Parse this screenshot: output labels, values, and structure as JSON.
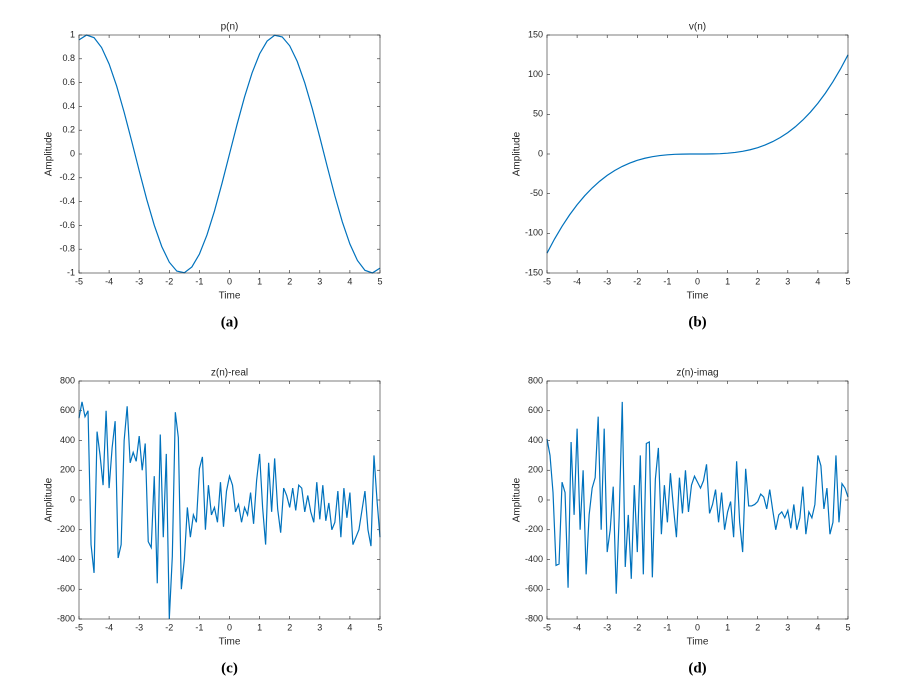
{
  "chart_data": [
    {
      "type": "line",
      "title": "p(n)",
      "caption": "(a)",
      "xlabel": "Time",
      "ylabel": "Amplitude",
      "color": "#0072bd",
      "x": [
        -5,
        -4.75,
        -4.5,
        -4.25,
        -4,
        -3.75,
        -3.5,
        -3.25,
        -3,
        -2.75,
        -2.5,
        -2.25,
        -2,
        -1.75,
        -1.5,
        -1.25,
        -1,
        -0.75,
        -0.5,
        -0.25,
        0,
        0.25,
        0.5,
        0.75,
        1,
        1.25,
        1.5,
        1.75,
        2,
        2.25,
        2.5,
        2.75,
        3,
        3.25,
        3.5,
        3.75,
        4,
        4.25,
        4.5,
        4.75,
        5
      ],
      "values": [
        0.9589,
        0.9993,
        0.9775,
        0.895,
        0.7568,
        0.5716,
        0.3508,
        0.1082,
        -0.1411,
        -0.3817,
        -0.5985,
        -0.7781,
        -0.9093,
        -0.984,
        -0.9975,
        -0.949,
        -0.8415,
        -0.6816,
        -0.4794,
        -0.2474,
        0,
        0.2474,
        0.4794,
        0.6816,
        0.8415,
        0.949,
        0.9975,
        0.984,
        0.9093,
        0.7781,
        0.5985,
        0.3817,
        0.1411,
        -0.1082,
        -0.3508,
        -0.5716,
        -0.7568,
        -0.895,
        -0.9775,
        -0.9993,
        -0.9589
      ],
      "xlim": [
        -5,
        5
      ],
      "ylim": [
        -1,
        1
      ],
      "xticks": [
        -5,
        -4,
        -3,
        -2,
        -1,
        0,
        1,
        2,
        3,
        4,
        5
      ],
      "yticks": [
        -1,
        -0.8,
        -0.6,
        -0.4,
        -0.2,
        0,
        0.2,
        0.4,
        0.6,
        0.8,
        1
      ]
    },
    {
      "type": "line",
      "title": "v(n)",
      "caption": "(b)",
      "xlabel": "Time",
      "ylabel": "Amplitude",
      "color": "#0072bd",
      "x": [
        -5,
        -4.75,
        -4.5,
        -4.25,
        -4,
        -3.75,
        -3.5,
        -3.25,
        -3,
        -2.75,
        -2.5,
        -2.25,
        -2,
        -1.75,
        -1.5,
        -1.25,
        -1,
        -0.75,
        -0.5,
        -0.25,
        0,
        0.25,
        0.5,
        0.75,
        1,
        1.25,
        1.5,
        1.75,
        2,
        2.25,
        2.5,
        2.75,
        3,
        3.25,
        3.5,
        3.75,
        4,
        4.25,
        4.5,
        4.75,
        5
      ],
      "values": [
        -125,
        -107.17,
        -91.13,
        -76.77,
        -64,
        -52.73,
        -42.88,
        -34.33,
        -27,
        -20.8,
        -15.63,
        -11.39,
        -8,
        -5.36,
        -3.38,
        -1.95,
        -1,
        -0.42,
        -0.13,
        -0.02,
        0,
        0.02,
        0.13,
        0.42,
        1,
        1.95,
        3.38,
        5.36,
        8,
        11.39,
        15.63,
        20.8,
        27,
        34.33,
        42.88,
        52.73,
        64,
        76.77,
        91.13,
        107.17,
        125
      ],
      "xlim": [
        -5,
        5
      ],
      "ylim": [
        -150,
        150
      ],
      "xticks": [
        -5,
        -4,
        -3,
        -2,
        -1,
        0,
        1,
        2,
        3,
        4,
        5
      ],
      "yticks": [
        -150,
        -100,
        -50,
        0,
        50,
        100,
        150
      ]
    },
    {
      "type": "line",
      "title": "z(n)-real",
      "caption": "(c)",
      "xlabel": "Time",
      "ylabel": "Amplitude",
      "color": "#0072bd",
      "x": [
        -5,
        -4.9,
        -4.8,
        -4.7,
        -4.6,
        -4.5,
        -4.4,
        -4.3,
        -4.2,
        -4.1,
        -4,
        -3.9,
        -3.8,
        -3.7,
        -3.6,
        -3.5,
        -3.4,
        -3.3,
        -3.2,
        -3.1,
        -3,
        -2.9,
        -2.8,
        -2.7,
        -2.6,
        -2.5,
        -2.4,
        -2.3,
        -2.2,
        -2.1,
        -2,
        -1.9,
        -1.8,
        -1.7,
        -1.6,
        -1.5,
        -1.4,
        -1.3,
        -1.2,
        -1.1,
        -1,
        -0.9,
        -0.8,
        -0.7,
        -0.6,
        -0.5,
        -0.4,
        -0.3,
        -0.2,
        -0.1,
        0,
        0.1,
        0.2,
        0.3,
        0.4,
        0.5,
        0.6,
        0.7,
        0.8,
        0.9,
        1,
        1.1,
        1.2,
        1.3,
        1.4,
        1.5,
        1.6,
        1.7,
        1.8,
        1.9,
        2,
        2.1,
        2.2,
        2.3,
        2.4,
        2.5,
        2.6,
        2.7,
        2.8,
        2.9,
        3,
        3.1,
        3.2,
        3.3,
        3.4,
        3.5,
        3.6,
        3.7,
        3.8,
        3.9,
        4,
        4.1,
        4.2,
        4.3,
        4.4,
        4.5,
        4.6,
        4.7,
        4.8,
        4.9,
        5
      ],
      "values": [
        550,
        660,
        560,
        600,
        -300,
        -490,
        460,
        300,
        100,
        600,
        80,
        350,
        530,
        -390,
        -300,
        400,
        630,
        250,
        320,
        260,
        430,
        200,
        380,
        -280,
        -320,
        160,
        -560,
        440,
        -250,
        310,
        -800,
        -380,
        590,
        420,
        -600,
        -400,
        -50,
        -250,
        -100,
        -150,
        210,
        290,
        -200,
        100,
        -100,
        -50,
        -150,
        120,
        -180,
        60,
        160,
        100,
        -80,
        -30,
        -150,
        -50,
        -100,
        50,
        -160,
        130,
        310,
        -50,
        -300,
        250,
        -80,
        280,
        -60,
        -220,
        80,
        30,
        -50,
        80,
        -70,
        100,
        80,
        -80,
        30,
        -80,
        -150,
        120,
        -130,
        100,
        -140,
        -20,
        -200,
        -150,
        60,
        -250,
        80,
        -120,
        50,
        -300,
        -250,
        -200,
        -70,
        60,
        -200,
        -310,
        300,
        0,
        -250
      ],
      "xlim": [
        -5,
        5
      ],
      "ylim": [
        -800,
        800
      ],
      "xticks": [
        -5,
        -4,
        -3,
        -2,
        -1,
        0,
        1,
        2,
        3,
        4,
        5
      ],
      "yticks": [
        -800,
        -600,
        -400,
        -200,
        0,
        200,
        400,
        600,
        800
      ]
    },
    {
      "type": "line",
      "title": "z(n)-imag",
      "caption": "(d)",
      "xlabel": "Time",
      "ylabel": "Amplitude",
      "color": "#0072bd",
      "x": [
        -5,
        -4.9,
        -4.8,
        -4.7,
        -4.6,
        -4.5,
        -4.4,
        -4.3,
        -4.2,
        -4.1,
        -4,
        -3.9,
        -3.8,
        -3.7,
        -3.6,
        -3.5,
        -3.4,
        -3.3,
        -3.2,
        -3.1,
        -3,
        -2.9,
        -2.8,
        -2.7,
        -2.6,
        -2.5,
        -2.4,
        -2.3,
        -2.2,
        -2.1,
        -2,
        -1.9,
        -1.8,
        -1.7,
        -1.6,
        -1.5,
        -1.4,
        -1.3,
        -1.2,
        -1.1,
        -1,
        -0.9,
        -0.8,
        -0.7,
        -0.6,
        -0.5,
        -0.4,
        -0.3,
        -0.2,
        -0.1,
        0,
        0.1,
        0.2,
        0.3,
        0.4,
        0.5,
        0.6,
        0.7,
        0.8,
        0.9,
        1,
        1.1,
        1.2,
        1.3,
        1.4,
        1.5,
        1.6,
        1.7,
        1.8,
        1.9,
        2,
        2.1,
        2.2,
        2.3,
        2.4,
        2.5,
        2.6,
        2.7,
        2.8,
        2.9,
        3,
        3.1,
        3.2,
        3.3,
        3.4,
        3.5,
        3.6,
        3.7,
        3.8,
        3.9,
        4,
        4.1,
        4.2,
        4.3,
        4.4,
        4.5,
        4.6,
        4.7,
        4.8,
        4.9,
        5
      ],
      "values": [
        410,
        300,
        50,
        -440,
        -430,
        120,
        50,
        -590,
        390,
        -100,
        480,
        -200,
        200,
        -500,
        -100,
        80,
        150,
        560,
        -200,
        480,
        -350,
        -200,
        90,
        -630,
        -100,
        660,
        -450,
        -100,
        -530,
        100,
        -350,
        300,
        -500,
        380,
        390,
        -520,
        140,
        350,
        -230,
        100,
        -150,
        180,
        -50,
        -250,
        150,
        -90,
        200,
        -80,
        100,
        160,
        120,
        80,
        130,
        240,
        -90,
        -30,
        70,
        -150,
        50,
        -200,
        -80,
        -10,
        -250,
        260,
        -150,
        -350,
        210,
        -40,
        -40,
        -30,
        -10,
        40,
        20,
        -60,
        70,
        -70,
        -200,
        -100,
        -80,
        -120,
        -70,
        -190,
        -30,
        -200,
        -120,
        90,
        -230,
        -80,
        -120,
        -30,
        300,
        230,
        -60,
        80,
        -230,
        -150,
        300,
        -150,
        110,
        80,
        20
      ],
      "xlim": [
        -5,
        5
      ],
      "ylim": [
        -800,
        800
      ],
      "xticks": [
        -5,
        -4,
        -3,
        -2,
        -1,
        0,
        1,
        2,
        3,
        4,
        5
      ],
      "yticks": [
        -800,
        -600,
        -400,
        -200,
        0,
        200,
        400,
        600,
        800
      ]
    }
  ]
}
